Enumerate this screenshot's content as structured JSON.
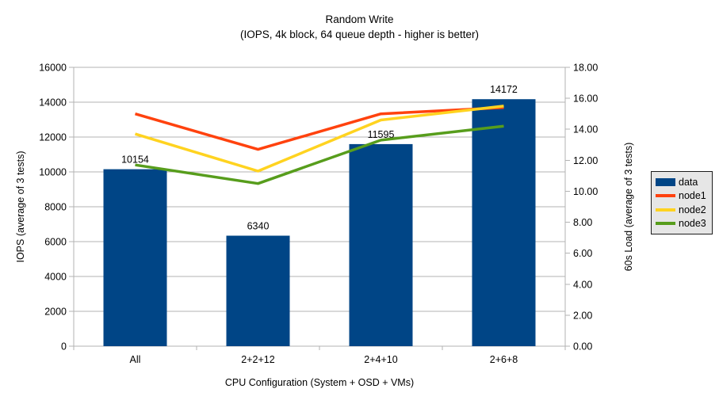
{
  "chart_data": {
    "type": "combo-bar-line",
    "title": "Random Write",
    "subtitle": "(IOPS, 4k block, 64 queue depth - higher is better)",
    "categories": [
      "All",
      "2+2+12",
      "2+4+10",
      "2+6+8"
    ],
    "xlabel": "CPU Configuration (System + OSD + VMs)",
    "left_axis": {
      "label": "IOPS (average of 3 tests)",
      "min": 0,
      "max": 16000,
      "step": 2000,
      "tick_labels": [
        "0",
        "2000",
        "4000",
        "6000",
        "8000",
        "10000",
        "12000",
        "14000",
        "16000"
      ]
    },
    "right_axis": {
      "label": "60s Load (average of 3 tests)",
      "min": 0,
      "max": 18,
      "step": 2,
      "tick_labels": [
        "0.00",
        "2.00",
        "4.00",
        "6.00",
        "8.00",
        "10.00",
        "12.00",
        "14.00",
        "16.00",
        "18.00"
      ]
    },
    "bar_series": {
      "name": "data",
      "axis": "left",
      "color": "#004586",
      "values": [
        10154,
        6340,
        11595,
        14172
      ],
      "labels": [
        "10154",
        "6340",
        "11595",
        "14172"
      ]
    },
    "line_series": [
      {
        "name": "node1",
        "axis": "right",
        "color": "#ff420e",
        "values": [
          15.0,
          12.7,
          15.0,
          15.4
        ]
      },
      {
        "name": "node2",
        "axis": "right",
        "color": "#ffd320",
        "values": [
          13.7,
          11.3,
          14.6,
          15.5
        ]
      },
      {
        "name": "node3",
        "axis": "right",
        "color": "#579d1c",
        "values": [
          11.7,
          10.5,
          13.3,
          14.2
        ]
      }
    ],
    "legend": {
      "position": "right",
      "items": [
        {
          "label": "data",
          "color": "#004586",
          "marker": "bar"
        },
        {
          "label": "node1",
          "color": "#ff420e",
          "marker": "line"
        },
        {
          "label": "node2",
          "color": "#ffd320",
          "marker": "line"
        },
        {
          "label": "node3",
          "color": "#579d1c",
          "marker": "line"
        }
      ]
    },
    "grid": {
      "on": true,
      "color": "#b3b3b3"
    }
  }
}
